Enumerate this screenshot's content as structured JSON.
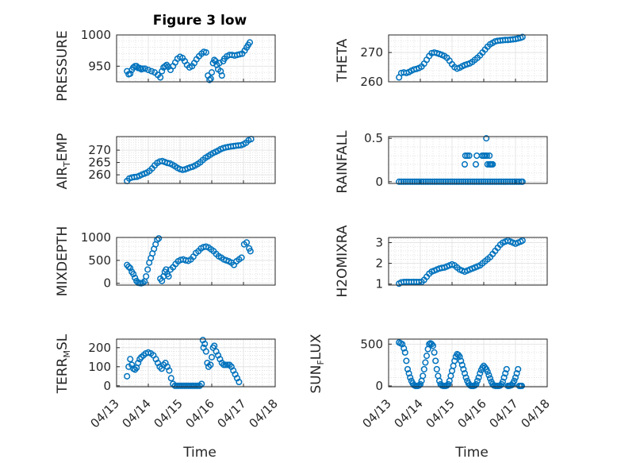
{
  "figure": {
    "title": "Figure 3 low",
    "marker_color": "#0072BD",
    "grid_color": "#d0d0d0",
    "x_tick_labels": [
      "04/13",
      "04/14",
      "04/15",
      "04/16",
      "04/17",
      "04/18"
    ],
    "x_label": "Time"
  },
  "chart_data": [
    {
      "type": "scatter",
      "marker": "circle",
      "title": "Figure 3 low",
      "ylabel": "PRESSURE",
      "ylim": [
        925,
        1000
      ],
      "yticks": [
        950,
        1000
      ],
      "grid": true,
      "x_range": [
        "04/13",
        "04/18"
      ],
      "x_ticks": [
        "04/13",
        "04/14",
        "04/15",
        "04/16",
        "04/17",
        "04/18"
      ],
      "x": [
        0.33,
        0.38,
        0.43,
        0.48,
        0.53,
        0.58,
        0.63,
        0.68,
        0.73,
        0.78,
        0.83,
        0.9,
        1.0,
        1.1,
        1.2,
        1.3,
        1.38,
        1.43,
        1.48,
        1.53,
        1.58,
        1.63,
        1.7,
        1.78,
        1.85,
        1.92,
        2.0,
        2.08,
        2.15,
        2.22,
        2.3,
        2.38,
        2.45,
        2.52,
        2.6,
        2.68,
        2.75,
        2.82,
        2.88,
        2.93,
        2.97,
        3.0,
        3.04,
        3.08,
        3.12,
        3.16,
        3.2,
        3.24,
        3.28,
        3.32,
        3.36,
        3.4,
        3.48,
        3.56,
        3.64,
        3.72,
        3.8,
        3.88,
        3.96,
        4.04,
        4.1,
        4.15,
        4.2
      ],
      "y": [
        942,
        937,
        938,
        944,
        948,
        950,
        950,
        947,
        947,
        945,
        946,
        946,
        944,
        942,
        940,
        936,
        932,
        942,
        948,
        950,
        952,
        949,
        944,
        950,
        956,
        962,
        965,
        963,
        958,
        952,
        948,
        950,
        955,
        961,
        966,
        970,
        973,
        972,
        935,
        928,
        930,
        940,
        955,
        960,
        958,
        952,
        945,
        955,
        942,
        935,
        958,
        962,
        966,
        968,
        968,
        967,
        968,
        969,
        970,
        975,
        980,
        984,
        988
      ]
    },
    {
      "type": "scatter",
      "marker": "circle",
      "ylabel": "THETA",
      "ylim": [
        260,
        276
      ],
      "yticks": [
        260,
        270
      ],
      "grid": true,
      "x_range": [
        "04/13",
        "04/18"
      ],
      "x": [
        0.33,
        0.4,
        0.48,
        0.56,
        0.64,
        0.72,
        0.8,
        0.88,
        0.96,
        1.04,
        1.12,
        1.2,
        1.28,
        1.36,
        1.44,
        1.52,
        1.6,
        1.68,
        1.76,
        1.84,
        1.92,
        2.0,
        2.08,
        2.16,
        2.24,
        2.32,
        2.4,
        2.48,
        2.56,
        2.64,
        2.72,
        2.8,
        2.88,
        2.96,
        3.04,
        3.12,
        3.2,
        3.28,
        3.36,
        3.44,
        3.52,
        3.6,
        3.68,
        3.76,
        3.84,
        3.92,
        4.0,
        4.08,
        4.16,
        4.22
      ],
      "y": [
        261.5,
        263,
        263.2,
        263,
        263.3,
        263.8,
        264.2,
        264.4,
        264.7,
        265.2,
        266.2,
        267.5,
        268.8,
        269.8,
        270,
        269.8,
        269.5,
        269.2,
        268.8,
        268.2,
        267.2,
        266,
        265,
        264.5,
        264.8,
        265.3,
        265.7,
        266,
        266.3,
        266.8,
        267.5,
        268.2,
        269,
        270,
        271,
        272,
        272.8,
        273.3,
        273.8,
        274,
        274.1,
        274.2,
        274.3,
        274.3,
        274.4,
        274.5,
        274.6,
        274.8,
        275,
        275.3
      ]
    },
    {
      "type": "scatter",
      "marker": "circle",
      "ylabel": "AIR_TEMP",
      "ylim": [
        256.5,
        275.5
      ],
      "yticks": [
        260,
        265,
        270
      ],
      "grid": true,
      "x_range": [
        "04/13",
        "04/18"
      ],
      "x": [
        0.33,
        0.4,
        0.48,
        0.56,
        0.64,
        0.72,
        0.8,
        0.88,
        0.96,
        1.04,
        1.12,
        1.2,
        1.28,
        1.36,
        1.44,
        1.52,
        1.6,
        1.68,
        1.76,
        1.84,
        1.92,
        2.0,
        2.08,
        2.16,
        2.24,
        2.32,
        2.4,
        2.48,
        2.56,
        2.64,
        2.72,
        2.8,
        2.88,
        2.96,
        3.04,
        3.12,
        3.2,
        3.28,
        3.36,
        3.44,
        3.52,
        3.6,
        3.68,
        3.76,
        3.84,
        3.92,
        4.0,
        4.08,
        4.16,
        4.24
      ],
      "y": [
        257.5,
        258.5,
        258.9,
        259.1,
        259.2,
        259.6,
        260.1,
        260.5,
        260.9,
        261.6,
        262.6,
        263.8,
        264.8,
        265.4,
        265.6,
        265.2,
        264.8,
        264.6,
        264.1,
        263.5,
        262.8,
        262.3,
        262,
        262.2,
        262.6,
        263,
        263.3,
        263.8,
        264.4,
        265.1,
        266,
        266.9,
        267.5,
        268.2,
        268.8,
        269.3,
        269.8,
        270.4,
        270.8,
        271.1,
        271.3,
        271.5,
        271.6,
        271.8,
        271.9,
        272,
        272.4,
        273,
        274,
        274.5
      ]
    },
    {
      "type": "scatter",
      "marker": "circle",
      "ylabel": "RAINFALL",
      "ylim": [
        -0.02,
        0.52
      ],
      "yticks": [
        0,
        0.5
      ],
      "grid": true,
      "x_range": [
        "04/13",
        "04/18"
      ],
      "x": [
        0.33,
        0.4,
        0.47,
        0.54,
        0.61,
        0.68,
        0.75,
        0.82,
        0.89,
        0.96,
        1.03,
        1.1,
        1.17,
        1.24,
        1.31,
        1.38,
        1.45,
        1.52,
        1.59,
        1.66,
        1.73,
        1.8,
        1.87,
        1.94,
        2.01,
        2.08,
        2.15,
        2.22,
        2.29,
        2.36,
        2.43,
        2.5,
        2.57,
        2.64,
        2.71,
        2.78,
        2.85,
        2.92,
        2.99,
        3.06,
        3.13,
        3.2,
        3.27,
        3.34,
        3.41,
        3.48,
        3.55,
        3.62,
        3.69,
        3.76,
        3.83,
        3.9,
        3.97,
        4.04,
        4.11,
        4.18,
        4.22,
        2.42,
        2.48,
        2.54,
        2.4,
        2.75,
        2.78,
        2.95,
        3.0,
        3.05,
        3.1,
        3.12,
        3.18,
        3.24,
        3.28,
        3.08,
        3.18,
        3.22
      ],
      "y": [
        0,
        0,
        0,
        0,
        0,
        0,
        0,
        0,
        0,
        0,
        0,
        0,
        0,
        0,
        0,
        0,
        0,
        0,
        0,
        0,
        0,
        0,
        0,
        0,
        0,
        0,
        0,
        0,
        0,
        0,
        0,
        0,
        0,
        0,
        0,
        0,
        0,
        0,
        0,
        0,
        0,
        0,
        0,
        0,
        0,
        0,
        0,
        0,
        0,
        0,
        0,
        0,
        0,
        0,
        0,
        0,
        0,
        0.3,
        0.3,
        0.3,
        0.2,
        0.2,
        0.3,
        0.3,
        0.3,
        0.3,
        0.3,
        0.2,
        0.2,
        0.2,
        0.2,
        0.5,
        0.3,
        0.2
      ]
    },
    {
      "type": "scatter",
      "marker": "circle",
      "ylabel": "MIXDEPTH",
      "ylim": [
        -40,
        1000
      ],
      "yticks": [
        0,
        500,
        1000
      ],
      "grid": true,
      "x_range": [
        "04/13",
        "04/18"
      ],
      "x": [
        0.33,
        0.38,
        0.43,
        0.48,
        0.53,
        0.58,
        0.63,
        0.68,
        0.73,
        0.78,
        0.83,
        0.88,
        0.93,
        0.98,
        1.03,
        1.08,
        1.13,
        1.18,
        1.23,
        1.28,
        1.33,
        1.38,
        1.43,
        1.48,
        1.52,
        1.56,
        1.6,
        1.64,
        1.7,
        1.78,
        1.86,
        1.94,
        2.02,
        2.1,
        2.18,
        2.26,
        2.34,
        2.42,
        2.5,
        2.58,
        2.66,
        2.74,
        2.82,
        2.9,
        2.98,
        3.06,
        3.14,
        3.22,
        3.3,
        3.38,
        3.46,
        3.54,
        3.62,
        3.7,
        3.78,
        3.86,
        3.94,
        4.02,
        4.1,
        4.18,
        4.22
      ],
      "y": [
        400,
        360,
        330,
        250,
        200,
        120,
        50,
        10,
        5,
        0,
        10,
        40,
        150,
        300,
        450,
        550,
        650,
        750,
        850,
        950,
        980,
        100,
        50,
        150,
        250,
        300,
        200,
        150,
        300,
        350,
        420,
        480,
        510,
        520,
        500,
        490,
        520,
        580,
        660,
        700,
        760,
        790,
        800,
        780,
        740,
        700,
        640,
        590,
        560,
        520,
        500,
        480,
        450,
        400,
        480,
        520,
        560,
        850,
        890,
        760,
        700
      ]
    },
    {
      "type": "scatter",
      "marker": "circle",
      "ylabel": "H2OMIXRA",
      "ylim": [
        0.95,
        3.25
      ],
      "yticks": [
        1,
        2,
        3
      ],
      "grid": true,
      "x_range": [
        "04/13",
        "04/18"
      ],
      "x": [
        0.33,
        0.4,
        0.48,
        0.56,
        0.64,
        0.72,
        0.8,
        0.88,
        0.96,
        1.04,
        1.12,
        1.2,
        1.28,
        1.36,
        1.44,
        1.52,
        1.6,
        1.68,
        1.76,
        1.84,
        1.92,
        2.0,
        2.08,
        2.16,
        2.24,
        2.32,
        2.4,
        2.48,
        2.56,
        2.64,
        2.72,
        2.8,
        2.88,
        2.96,
        3.04,
        3.12,
        3.2,
        3.28,
        3.36,
        3.44,
        3.52,
        3.6,
        3.68,
        3.76,
        3.84,
        3.92,
        4.0,
        4.08,
        4.16,
        4.22
      ],
      "y": [
        1.02,
        1.08,
        1.1,
        1.1,
        1.1,
        1.1,
        1.1,
        1.1,
        1.1,
        1.1,
        1.2,
        1.35,
        1.5,
        1.6,
        1.65,
        1.7,
        1.75,
        1.78,
        1.8,
        1.85,
        1.9,
        1.95,
        1.9,
        1.8,
        1.7,
        1.65,
        1.6,
        1.65,
        1.7,
        1.75,
        1.8,
        1.85,
        1.9,
        2.0,
        2.1,
        2.2,
        2.3,
        2.45,
        2.6,
        2.75,
        2.9,
        3.0,
        3.05,
        3.1,
        3.05,
        3.0,
        2.95,
        3.0,
        3.05,
        3.1
      ]
    },
    {
      "type": "scatter",
      "marker": "circle",
      "ylabel": "TERR_MSL",
      "ylim": [
        -5,
        245
      ],
      "yticks": [
        0,
        100,
        200
      ],
      "grid": true,
      "x_range": [
        "04/13",
        "04/18"
      ],
      "x": [
        0.33,
        0.38,
        0.43,
        0.48,
        0.53,
        0.58,
        0.63,
        0.68,
        0.73,
        0.78,
        0.85,
        0.92,
        1.0,
        1.08,
        1.16,
        1.24,
        1.3,
        1.36,
        1.42,
        1.48,
        1.54,
        1.6,
        1.66,
        1.72,
        1.78,
        1.84,
        1.9,
        1.96,
        2.02,
        2.08,
        2.14,
        2.2,
        2.26,
        2.32,
        2.38,
        2.44,
        2.5,
        2.56,
        2.62,
        2.68,
        2.72,
        2.74,
        2.78,
        2.82,
        2.86,
        2.9,
        2.96,
        3.0,
        3.04,
        3.08,
        3.14,
        3.2,
        3.26,
        3.32,
        3.38,
        3.44,
        3.5,
        3.56,
        3.62,
        3.68,
        3.74,
        3.8,
        3.86
      ],
      "y": [
        50,
        100,
        140,
        110,
        90,
        85,
        95,
        120,
        140,
        150,
        160,
        170,
        175,
        170,
        160,
        140,
        120,
        100,
        90,
        110,
        120,
        100,
        80,
        40,
        10,
        0,
        0,
        0,
        0,
        0,
        0,
        0,
        0,
        0,
        0,
        0,
        0,
        0,
        0,
        10,
        240,
        200,
        220,
        180,
        120,
        100,
        110,
        150,
        200,
        210,
        180,
        160,
        140,
        120,
        110,
        110,
        110,
        110,
        100,
        80,
        60,
        40,
        20
      ]
    },
    {
      "type": "scatter",
      "marker": "circle",
      "ylabel": "SUN_FLUX",
      "ylim": [
        -10,
        560
      ],
      "yticks": [
        0,
        500
      ],
      "grid": true,
      "x_range": [
        "04/13",
        "04/18"
      ],
      "x": [
        0.33,
        0.38,
        0.43,
        0.48,
        0.52,
        0.56,
        0.6,
        0.64,
        0.68,
        0.72,
        0.76,
        0.8,
        0.84,
        0.88,
        0.92,
        0.96,
        1.0,
        1.04,
        1.08,
        1.12,
        1.16,
        1.2,
        1.24,
        1.28,
        1.32,
        1.36,
        1.4,
        1.44,
        1.48,
        1.52,
        1.56,
        1.6,
        1.64,
        1.68,
        1.72,
        1.76,
        1.8,
        1.84,
        1.88,
        1.92,
        1.96,
        2.0,
        2.04,
        2.08,
        2.12,
        2.16,
        2.2,
        2.24,
        2.28,
        2.32,
        2.36,
        2.4,
        2.44,
        2.48,
        2.52,
        2.56,
        2.6,
        2.64,
        2.68,
        2.72,
        2.76,
        2.8,
        2.84,
        2.88,
        2.92,
        2.96,
        3.0,
        3.04,
        3.08,
        3.12,
        3.16,
        3.2,
        3.24,
        3.28,
        3.32,
        3.36,
        3.4,
        3.44,
        3.48,
        3.52,
        3.56,
        3.6,
        3.64,
        3.68,
        3.72,
        3.76,
        3.8,
        3.84,
        3.88,
        3.92,
        3.96,
        4.0,
        4.04,
        4.08,
        4.12,
        4.16,
        4.2
      ],
      "y": [
        520,
        510,
        500,
        450,
        400,
        300,
        200,
        150,
        100,
        60,
        30,
        10,
        0,
        0,
        0,
        5,
        20,
        60,
        120,
        200,
        280,
        360,
        440,
        500,
        510,
        500,
        480,
        400,
        300,
        200,
        120,
        60,
        20,
        5,
        0,
        0,
        0,
        5,
        20,
        60,
        120,
        180,
        240,
        300,
        350,
        380,
        370,
        350,
        300,
        250,
        200,
        150,
        100,
        60,
        30,
        10,
        0,
        0,
        0,
        5,
        20,
        60,
        100,
        150,
        190,
        220,
        240,
        220,
        200,
        170,
        130,
        90,
        50,
        20,
        5,
        0,
        0,
        0,
        0,
        5,
        20,
        50,
        100,
        150,
        200,
        0,
        0,
        5,
        10,
        30,
        60,
        100,
        150,
        200,
        0,
        0,
        0
      ]
    }
  ]
}
